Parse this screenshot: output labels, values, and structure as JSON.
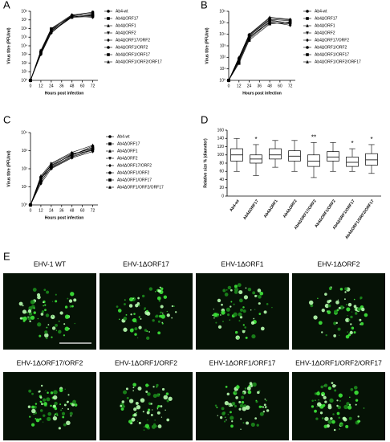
{
  "chart_data": [
    {
      "type": "line",
      "label": "A",
      "x_label": "Hours post infection",
      "y_label": "Virus titre (PFU/ml)",
      "x": [
        0,
        12,
        24,
        48,
        72
      ],
      "xlim": [
        0,
        78
      ],
      "xticks": [
        0,
        12,
        24,
        36,
        48,
        60,
        72
      ],
      "ylim": [
        1,
        100000000
      ],
      "log_y": true,
      "color": "#000000",
      "yticks": [
        {
          "value": 1,
          "label": "10⁰"
        },
        {
          "value": 10,
          "label": "10¹"
        },
        {
          "value": 100,
          "label": "10²"
        },
        {
          "value": 1000,
          "label": "10³"
        },
        {
          "value": 10000,
          "label": "10⁴"
        },
        {
          "value": 100000,
          "label": "10⁵"
        },
        {
          "value": 1000000,
          "label": "10⁶"
        },
        {
          "value": 10000000,
          "label": "10⁷"
        },
        {
          "value": 100000000,
          "label": "10⁸"
        }
      ],
      "series": [
        {
          "name": "Ab4-wt",
          "marker": "circle",
          "values": [
            1,
            2000,
            800000,
            30000000,
            60000000
          ]
        },
        {
          "name": "Ab4ΔORF17",
          "marker": "square",
          "values": [
            1,
            1500,
            500000,
            25000000,
            30000000
          ]
        },
        {
          "name": "Ab4ΔORF1",
          "marker": "triangle",
          "values": [
            1,
            3000,
            1000000,
            40000000,
            50000000
          ]
        },
        {
          "name": "Ab4ΔORF2",
          "marker": "triangle-down",
          "values": [
            1,
            2500,
            600000,
            20000000,
            40000000
          ]
        },
        {
          "name": "Ab4ΔORF17/ORF2",
          "marker": "diamond",
          "values": [
            1,
            1000,
            300000,
            30000000,
            20000000
          ]
        },
        {
          "name": "Ab4ΔORF1/ORF2",
          "marker": "circle",
          "values": [
            1,
            2000,
            700000,
            35000000,
            80000000
          ]
        },
        {
          "name": "Ab4ΔORF1/ORF17",
          "marker": "square",
          "values": [
            1,
            1800,
            900000,
            25000000,
            35000000
          ]
        },
        {
          "name": "Ab4ΔORF1/ORF2/ORF17",
          "marker": "triangle",
          "values": [
            1,
            1200,
            400000,
            20000000,
            25000000
          ]
        }
      ]
    },
    {
      "type": "line",
      "label": "B",
      "x_label": "Hours post infection",
      "y_label": "Virus titre (PFU/ml)",
      "x": [
        0,
        12,
        24,
        48,
        72
      ],
      "xlim": [
        0,
        78
      ],
      "xticks": [
        0,
        12,
        24,
        36,
        48,
        60,
        72
      ],
      "ylim": [
        1,
        1000000
      ],
      "log_y": true,
      "color": "#000000",
      "yticks": [
        {
          "value": 1,
          "label": "10⁰"
        },
        {
          "value": 10,
          "label": "10¹"
        },
        {
          "value": 100,
          "label": "10²"
        },
        {
          "value": 1000,
          "label": "10³"
        },
        {
          "value": 10000,
          "label": "10⁴"
        },
        {
          "value": 100000,
          "label": "10⁵"
        },
        {
          "value": 1000000,
          "label": "10⁶"
        }
      ],
      "series": [
        {
          "name": "Ab4-wt",
          "marker": "circle",
          "values": [
            1,
            80,
            8000,
            200000,
            150000
          ]
        },
        {
          "name": "Ab4ΔORF17",
          "marker": "square",
          "values": [
            1,
            50,
            5000,
            150000,
            100000
          ]
        },
        {
          "name": "Ab4ΔORF1",
          "marker": "triangle",
          "values": [
            1,
            100,
            10000,
            300000,
            200000
          ]
        },
        {
          "name": "Ab4ΔORF2",
          "marker": "triangle-down",
          "values": [
            1,
            60,
            6000,
            100000,
            80000
          ]
        },
        {
          "name": "Ab4ΔORF17/ORF2",
          "marker": "diamond",
          "values": [
            1,
            40,
            4000,
            120000,
            60000
          ]
        },
        {
          "name": "Ab4ΔORF1/ORF2",
          "marker": "circle",
          "values": [
            1,
            70,
            9000,
            250000,
            180000
          ]
        },
        {
          "name": "Ab4ΔORF1/ORF17",
          "marker": "square",
          "values": [
            1,
            30,
            3000,
            80000,
            120000
          ]
        },
        {
          "name": "Ab4ΔORF1/ORF2/ORF17",
          "marker": "triangle",
          "values": [
            1,
            90,
            7000,
            180000,
            90000
          ]
        }
      ]
    },
    {
      "type": "line",
      "label": "C",
      "x_label": "Hours post infection",
      "y_label": "Virus titre (PFU/ml)",
      "x": [
        0,
        12,
        24,
        48,
        72
      ],
      "xlim": [
        0,
        78
      ],
      "xticks": [
        0,
        12,
        24,
        36,
        48,
        60,
        72
      ],
      "ylim": [
        1,
        10000
      ],
      "log_y": true,
      "color": "#000000",
      "yticks": [
        {
          "value": 1,
          "label": "10⁰"
        },
        {
          "value": 10,
          "label": "10¹"
        },
        {
          "value": 100,
          "label": "10²"
        },
        {
          "value": 1000,
          "label": "10³"
        },
        {
          "value": 10000,
          "label": "10⁴"
        }
      ],
      "series": [
        {
          "name": "Ab4-wt",
          "marker": "circle",
          "values": [
            1,
            30,
            150,
            600,
            1500
          ]
        },
        {
          "name": "Ab4ΔORF17",
          "marker": "square",
          "values": [
            1,
            20,
            120,
            500,
            1200
          ]
        },
        {
          "name": "Ab4ΔORF1",
          "marker": "triangle",
          "values": [
            1,
            40,
            200,
            800,
            2000
          ]
        },
        {
          "name": "Ab4ΔORF2",
          "marker": "triangle-down",
          "values": [
            1,
            25,
            180,
            700,
            1000
          ]
        },
        {
          "name": "Ab4ΔORF17/ORF2",
          "marker": "diamond",
          "values": [
            1,
            15,
            100,
            400,
            900
          ]
        },
        {
          "name": "Ab4ΔORF1/ORF2",
          "marker": "circle",
          "values": [
            1,
            35,
            160,
            550,
            1800
          ]
        },
        {
          "name": "Ab4ΔORF1/ORF17",
          "marker": "square",
          "values": [
            1,
            20,
            130,
            650,
            1300
          ]
        },
        {
          "name": "Ab4ΔORF1/ORF2/ORF17",
          "marker": "triangle",
          "values": [
            1,
            30,
            110,
            450,
            1100
          ]
        }
      ]
    },
    {
      "type": "box",
      "label": "D",
      "y_label": "Relative size % (diameter)",
      "categories": [
        "Ab4-wt",
        "Ab4ΔORF17",
        "Ab4ΔORF1",
        "Ab4ΔORF2",
        "Ab4ΔORF17/ORF2",
        "Ab4ΔORF1/ORF2",
        "Ab4ΔORF1/ORF17",
        "Ab4ΔORF1/ORF2/ORF17"
      ],
      "ylim": [
        0,
        160
      ],
      "yticks": [
        0,
        20,
        40,
        60,
        80,
        100,
        120,
        140,
        160
      ],
      "color": "#000000",
      "boxes": [
        {
          "min": 60,
          "q1": 85,
          "median": 100,
          "q3": 115,
          "max": 140
        },
        {
          "min": 50,
          "q1": 80,
          "median": 90,
          "q3": 100,
          "max": 125
        },
        {
          "min": 70,
          "q1": 90,
          "median": 100,
          "q3": 115,
          "max": 135
        },
        {
          "min": 60,
          "q1": 85,
          "median": 97,
          "q3": 110,
          "max": 135
        },
        {
          "min": 45,
          "q1": 72,
          "median": 85,
          "q3": 100,
          "max": 130
        },
        {
          "min": 60,
          "q1": 85,
          "median": 95,
          "q3": 108,
          "max": 130
        },
        {
          "min": 60,
          "q1": 72,
          "median": 82,
          "q3": 95,
          "max": 115
        },
        {
          "min": 55,
          "q1": 75,
          "median": 88,
          "q3": 103,
          "max": 125
        }
      ],
      "significance": [
        {
          "category": "Ab4ΔORF17",
          "label": "*"
        },
        {
          "category": "Ab4ΔORF17/ORF2",
          "label": "**"
        },
        {
          "category": "Ab4ΔORF1/ORF17",
          "label": "*"
        },
        {
          "category": "Ab4ΔORF1/ORF2/ORF17",
          "label": "*"
        }
      ]
    }
  ],
  "figure_e": {
    "label": "E",
    "captions": [
      "EHV-1 WT",
      "EHV-1ΔORF17",
      "EHV-1ΔORF1",
      "EHV-1ΔORF2",
      "EHV-1ΔORF17/ORF2",
      "EHV-1ΔORF1/ORF2",
      "EHV-1ΔORF1/ORF17",
      "EHV-1ΔORF1/ORF2/ORF17"
    ]
  }
}
